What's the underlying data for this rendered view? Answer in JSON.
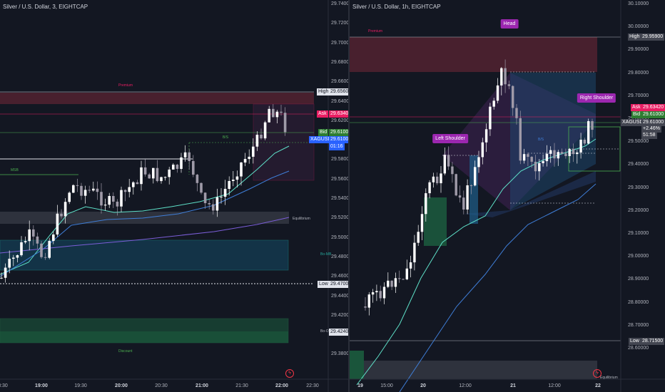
{
  "colors": {
    "background": "#131722",
    "bull": "#ffffff",
    "bear": "#9f9aa8",
    "premium_zone": "#5b2433",
    "ob_blue": "#134b66",
    "ob_green": "#1e6b44",
    "equilibrium": "#363a45",
    "ema_teal": "#5ee0c8",
    "ema_blue": "#3f7ed8",
    "ema_purple": "#7b5ed8",
    "ask": "#e91e63",
    "bid": "#2e7d32",
    "symbol_tag": "#2962ff",
    "annotation": "#9c27b0"
  },
  "left_pane": {
    "title": "Silver / U.S. Dollar, 3, EIGHTCAP",
    "y_ticks": [
      "29.7400",
      "29.7200",
      "29.7000",
      "29.6800",
      "29.6600",
      "29.6400",
      "29.6200",
      "29.6000",
      "29.5800",
      "29.5600",
      "29.5400",
      "29.5200",
      "29.5000",
      "29.4800",
      "29.4600",
      "29.4400",
      "29.4200",
      "29.4000",
      "29.3800"
    ],
    "x_ticks": [
      {
        "label": "8:30",
        "bold": false
      },
      {
        "label": "19:00",
        "bold": true
      },
      {
        "label": "19:30",
        "bold": false
      },
      {
        "label": "20:00",
        "bold": true
      },
      {
        "label": "20:30",
        "bold": false
      },
      {
        "label": "21:00",
        "bold": true
      },
      {
        "label": "21:30",
        "bold": false
      },
      {
        "label": "22:00",
        "bold": true
      },
      {
        "label": "22:30",
        "bold": false
      }
    ],
    "price_labels": {
      "high_label": "High",
      "high_value": "29.6560",
      "ask_label": "Ask",
      "ask_value": "29.6340",
      "bid_label": "Bid",
      "bid_value": "29.6100",
      "symbol_label": "XAGUSD",
      "symbol_value": "29.6100",
      "countdown": "01:16",
      "low_label": "Low",
      "low_value": "29.4700",
      "bo_value": "29.4240"
    },
    "zone_labels": {
      "premium": "Premium",
      "equilibrium": "Equilibrium",
      "discount": "Discount",
      "msb": "MSB",
      "bo_mb_top": "Bo-MB",
      "bo_mb_bottom": "Bo-OB",
      "inner": "B/S"
    }
  },
  "right_pane": {
    "title": "Silver / U.S. Dollar, 1h, EIGHTCAP",
    "y_ticks": [
      "30.10000",
      "30.00000",
      "29.90000",
      "29.80000",
      "29.70000",
      "29.60000",
      "29.50000",
      "29.40000",
      "29.30000",
      "29.20000",
      "29.10000",
      "29.00000",
      "28.90000",
      "28.80000",
      "28.70000",
      "28.60000"
    ],
    "x_ticks": [
      {
        "label": "19",
        "bold": true
      },
      {
        "label": "15:00",
        "bold": false
      },
      {
        "label": "20",
        "bold": true
      },
      {
        "label": "12:00",
        "bold": false
      },
      {
        "label": "21",
        "bold": true
      },
      {
        "label": "12:00",
        "bold": false
      },
      {
        "label": "22",
        "bold": true
      }
    ],
    "price_labels": {
      "high_label": "High",
      "high_value": "29.95900",
      "ask_label": "Ask",
      "ask_value": "29.63420",
      "bid_label": "Bid",
      "bid_value": "29.61000",
      "symbol_label": "XAGUSD",
      "symbol_value": "29.61000",
      "change": "+2.46%",
      "countdown": "51:58",
      "low_label": "Low",
      "low_value": "28.71500"
    },
    "annotations": {
      "head": "Head",
      "left_shoulder": "Left Shoulder",
      "right_shoulder": "Right Shoulder"
    },
    "zone_labels": {
      "premium": "Premium",
      "equilibrium": "Equilibrium",
      "inner": "B/S"
    }
  }
}
